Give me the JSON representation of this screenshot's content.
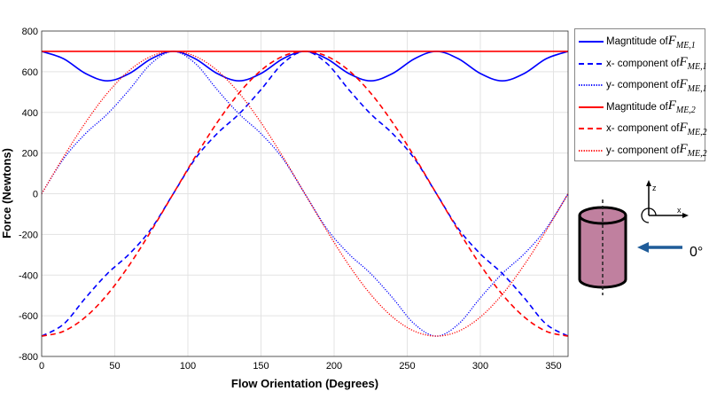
{
  "chart_data": {
    "type": "line",
    "xlabel": "Flow Orientation (Degrees)",
    "ylabel": "Force (Newtons)",
    "xlim": [
      0,
      360
    ],
    "ylim": [
      -800,
      800
    ],
    "xticks": [
      0,
      50,
      100,
      150,
      200,
      250,
      300,
      350
    ],
    "yticks": [
      -800,
      -600,
      -400,
      -200,
      0,
      200,
      400,
      600,
      800
    ],
    "grid": true,
    "legend_position": "outside-right",
    "x": [
      0,
      15,
      30,
      45,
      60,
      75,
      90,
      105,
      120,
      135,
      150,
      165,
      180,
      195,
      210,
      225,
      240,
      255,
      270,
      285,
      300,
      315,
      330,
      345,
      360
    ],
    "series": [
      {
        "name": "Magntitude of F_ME,1",
        "label": "Magntitude of ",
        "sym": "F",
        "subscript": "ME,1",
        "color": "#0000ff",
        "style": "solid",
        "values": [
          700,
          663.75,
          591.25,
          555,
          591.25,
          663.75,
          700,
          663.75,
          591.25,
          555,
          591.25,
          663.75,
          700,
          663.75,
          591.25,
          555,
          591.25,
          663.75,
          700,
          663.75,
          591.25,
          555,
          591.25,
          663.75,
          700
        ]
      },
      {
        "name": "x- component of F_ME,1",
        "label": "x- component of ",
        "sym": "F",
        "subscript": "ME,1",
        "color": "#0000ff",
        "style": "dashed",
        "values": [
          -700,
          -641.1,
          -512,
          -392.4,
          -295.6,
          -171.8,
          0,
          171.8,
          295.6,
          392.4,
          512,
          641.1,
          700,
          641.1,
          512,
          392.4,
          295.6,
          171.8,
          0,
          -171.8,
          -295.6,
          -392.4,
          -512,
          -641.1,
          -700
        ]
      },
      {
        "name": "y- component of F_ME,1",
        "label": "y- component of ",
        "sym": "F",
        "subscript": "ME,1",
        "color": "#0000ff",
        "style": "dotted",
        "values": [
          0,
          171.8,
          295.6,
          392.4,
          512,
          641.1,
          700,
          641.1,
          512,
          392.4,
          295.6,
          171.8,
          0,
          -171.8,
          -295.6,
          -392.4,
          -512,
          -641.1,
          -700,
          -641.1,
          -512,
          -392.4,
          -295.6,
          -171.8,
          0
        ]
      },
      {
        "name": "Magntitude of F_ME,2",
        "label": "Magntitude of ",
        "sym": "F",
        "subscript": "ME,2",
        "color": "#ff0000",
        "style": "solid",
        "values": [
          700,
          700,
          700,
          700,
          700,
          700,
          700,
          700,
          700,
          700,
          700,
          700,
          700,
          700,
          700,
          700,
          700,
          700,
          700,
          700,
          700,
          700,
          700,
          700,
          700
        ]
      },
      {
        "name": "x- component of F_ME,2",
        "label": "x- component of ",
        "sym": "F",
        "subscript": "ME,2",
        "color": "#ff0000",
        "style": "dashed",
        "values": [
          -700,
          -676.1,
          -606.2,
          -495,
          -350,
          -181.2,
          0,
          181.2,
          350,
          495,
          606.2,
          676.1,
          700,
          676.1,
          606.2,
          495,
          350,
          181.2,
          0,
          -181.2,
          -350,
          -495,
          -606.2,
          -676.1,
          -700
        ]
      },
      {
        "name": "y- component of F_ME,2",
        "label": "y- component of ",
        "sym": "F",
        "subscript": "ME,2",
        "color": "#ff0000",
        "style": "dotted",
        "values": [
          0,
          181.2,
          350,
          495,
          606.2,
          676.1,
          700,
          676.1,
          606.2,
          495,
          350,
          181.2,
          0,
          -181.2,
          -350,
          -495,
          -606.2,
          -676.1,
          -700,
          -676.1,
          -606.2,
          -495,
          -350,
          -181.2,
          0
        ]
      }
    ]
  },
  "diagram": {
    "axis_z": "z",
    "axis_x": "x",
    "angle_label": "0°",
    "cylinder_color": "#c0809f",
    "arrow_color": "#1f5c99"
  }
}
